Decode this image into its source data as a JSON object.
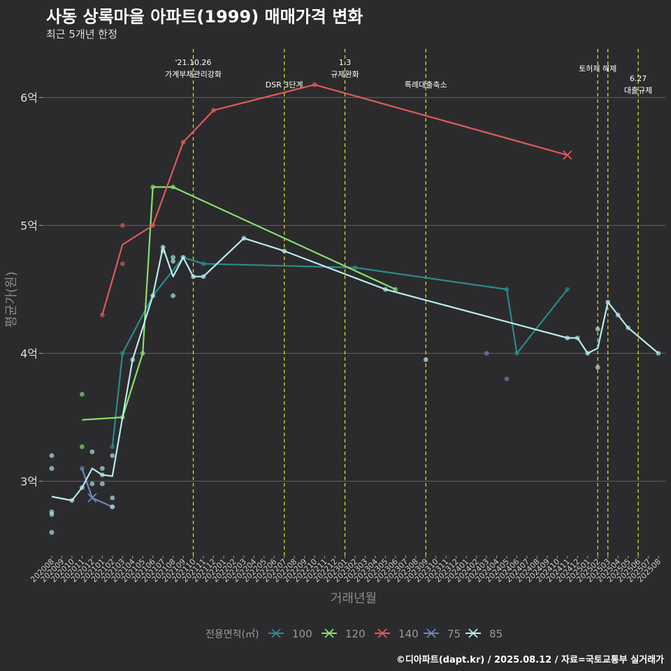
{
  "title": "사동 상록마을 아파트(1999) 매매가격 변화",
  "subtitle": "최근 5개년 한정",
  "caption": "©디아파트(dapt.kr) / 2025.08.12 / 자료=국토교통부 실거래가",
  "chart_data": {
    "type": "line",
    "xlabel": "거래년월",
    "ylabel": "평균가(원)",
    "x_categories": [
      "202008",
      "202009",
      "202010",
      "202011",
      "202012",
      "202101",
      "202102",
      "202103",
      "202104",
      "202105",
      "202106",
      "202107",
      "202108",
      "202109",
      "202110",
      "202111",
      "202112",
      "202201",
      "202202",
      "202203",
      "202204",
      "202205",
      "202206",
      "202207",
      "202208",
      "202209",
      "202210",
      "202211",
      "202212",
      "202301",
      "202302",
      "202303",
      "202304",
      "202305",
      "202306",
      "202307",
      "202308",
      "202309",
      "202310",
      "202311",
      "202312",
      "202401",
      "202402",
      "202403",
      "202404",
      "202405",
      "202406",
      "202407",
      "202408",
      "202409",
      "202410",
      "202411",
      "202412",
      "202501",
      "202502",
      "202503",
      "202504",
      "202505",
      "202506",
      "202507",
      "202508"
    ],
    "y_ticks": [
      {
        "value": 3,
        "label": "3억"
      },
      {
        "value": 4,
        "label": "4억"
      },
      {
        "value": 5,
        "label": "5억"
      },
      {
        "value": 6,
        "label": "6억"
      }
    ],
    "ylim": [
      2.45,
      6.4
    ],
    "grid": "horizontal",
    "legend": {
      "title": "전용면적(㎡)",
      "position": "bottom"
    },
    "series": [
      {
        "name": "100",
        "color": "#2a8c8c",
        "line": [
          [
            "202102",
            3.27
          ],
          [
            "202103",
            4.0
          ],
          [
            "202106",
            4.45
          ],
          [
            "202109",
            4.75
          ],
          [
            "202111",
            4.7
          ],
          [
            "202302",
            4.67
          ],
          [
            "202405",
            4.5
          ],
          [
            "202406",
            4.0
          ],
          [
            "202411",
            4.5
          ]
        ],
        "points": [
          [
            "202102",
            3.27
          ],
          [
            "202103",
            4.0
          ],
          [
            "202106",
            4.45
          ],
          [
            "202109",
            4.75
          ],
          [
            "202111",
            4.7
          ],
          [
            "202302",
            4.67
          ],
          [
            "202405",
            4.5
          ],
          [
            "202406",
            4.0
          ],
          [
            "202411",
            4.5
          ]
        ]
      },
      {
        "name": "120",
        "color": "#87e06e",
        "line": [
          [
            "202011",
            3.48
          ],
          [
            "202103",
            3.5
          ],
          [
            "202105",
            4.0
          ],
          [
            "202106",
            5.3
          ],
          [
            "202108",
            5.3
          ],
          [
            "202306",
            4.5
          ]
        ],
        "points": [
          [
            "202011",
            3.68
          ],
          [
            "202011",
            3.27
          ],
          [
            "202103",
            3.5
          ],
          [
            "202105",
            4.0
          ],
          [
            "202106",
            5.3
          ],
          [
            "202108",
            5.3
          ],
          [
            "202306",
            4.5
          ]
        ]
      },
      {
        "name": "140",
        "color": "#e05a5a",
        "line": [
          [
            "202101",
            4.3
          ],
          [
            "202103",
            4.85
          ],
          [
            "202106",
            5.0
          ],
          [
            "202109",
            5.65
          ],
          [
            "202112",
            5.9
          ],
          [
            "202210",
            6.1
          ],
          [
            "202411",
            5.55
          ]
        ],
        "points": [
          [
            "202101",
            4.3
          ],
          [
            "202103",
            5.0
          ],
          [
            "202103",
            4.7
          ],
          [
            "202106",
            5.0
          ],
          [
            "202109",
            5.65
          ],
          [
            "202112",
            5.9
          ],
          [
            "202210",
            6.1
          ]
        ],
        "crosses": [
          [
            "202411",
            5.55
          ]
        ]
      },
      {
        "name": "75",
        "color": "#7384c0",
        "line": [
          [
            "202011",
            3.1
          ],
          [
            "202012",
            2.87
          ],
          [
            "202102",
            2.8
          ]
        ],
        "points": [
          [
            "202011",
            3.1
          ],
          [
            "202102",
            2.8
          ],
          [
            "202403",
            4.0
          ],
          [
            "202405",
            3.8
          ]
        ],
        "crosses": [
          [
            "202012",
            2.87
          ]
        ]
      },
      {
        "name": "85",
        "color": "#b8ecec",
        "line": [
          [
            "202008",
            2.88
          ],
          [
            "202010",
            2.85
          ],
          [
            "202011",
            2.95
          ],
          [
            "202012",
            3.1
          ],
          [
            "202101",
            3.05
          ],
          [
            "202102",
            3.04
          ],
          [
            "202103",
            3.5
          ],
          [
            "202104",
            3.95
          ],
          [
            "202106",
            4.45
          ],
          [
            "202107",
            4.83
          ],
          [
            "202108",
            4.6
          ],
          [
            "202109",
            4.75
          ],
          [
            "202110",
            4.6
          ],
          [
            "202111",
            4.6
          ],
          [
            "202203",
            4.9
          ],
          [
            "202207",
            4.8
          ],
          [
            "202305",
            4.5
          ],
          [
            "202411",
            4.12
          ],
          [
            "202412",
            4.12
          ],
          [
            "202501",
            4.0
          ],
          [
            "202502",
            4.04
          ],
          [
            "202503",
            4.4
          ],
          [
            "202504",
            4.3
          ],
          [
            "202505",
            4.2
          ],
          [
            "202508",
            4.0
          ]
        ],
        "points": [
          [
            "202008",
            3.2
          ],
          [
            "202008",
            3.1
          ],
          [
            "202008",
            2.76
          ],
          [
            "202008",
            2.74
          ],
          [
            "202008",
            2.6
          ],
          [
            "202010",
            2.85
          ],
          [
            "202011",
            2.95
          ],
          [
            "202012",
            3.23
          ],
          [
            "202012",
            2.98
          ],
          [
            "202101",
            3.1
          ],
          [
            "202101",
            2.98
          ],
          [
            "202101",
            3.05
          ],
          [
            "202102",
            3.2
          ],
          [
            "202102",
            2.87
          ],
          [
            "202102",
            2.8
          ],
          [
            "202104",
            3.95
          ],
          [
            "202106",
            4.45
          ],
          [
            "202107",
            4.83
          ],
          [
            "202107",
            4.8
          ],
          [
            "202108",
            4.75
          ],
          [
            "202108",
            4.72
          ],
          [
            "202108",
            4.45
          ],
          [
            "202109",
            4.75
          ],
          [
            "202110",
            4.6
          ],
          [
            "202111",
            4.6
          ],
          [
            "202203",
            4.9
          ],
          [
            "202207",
            4.8
          ],
          [
            "202305",
            4.5
          ],
          [
            "202309",
            3.95
          ],
          [
            "202411",
            4.12
          ],
          [
            "202412",
            4.12
          ],
          [
            "202501",
            4.0
          ],
          [
            "202502",
            4.19
          ],
          [
            "202502",
            3.89
          ],
          [
            "202503",
            4.4
          ],
          [
            "202504",
            4.3
          ],
          [
            "202505",
            4.2
          ],
          [
            "202508",
            4.0
          ]
        ]
      }
    ],
    "annotations": [
      {
        "x": "202110",
        "lines": [
          "'21.10.26",
          "가계부채관리강화"
        ]
      },
      {
        "x": "202207",
        "lines": [
          "DSR 3단계"
        ]
      },
      {
        "x": "202301",
        "lines": [
          "1.3",
          "규제완화"
        ]
      },
      {
        "x": "202309",
        "lines": [
          "특례대출축소"
        ]
      },
      {
        "x": "202502",
        "lines": [
          "토허제 해제"
        ]
      },
      {
        "x": "202503",
        "lines": []
      },
      {
        "x": "202506",
        "lines": [
          "6.27",
          "대출규제"
        ]
      }
    ]
  }
}
